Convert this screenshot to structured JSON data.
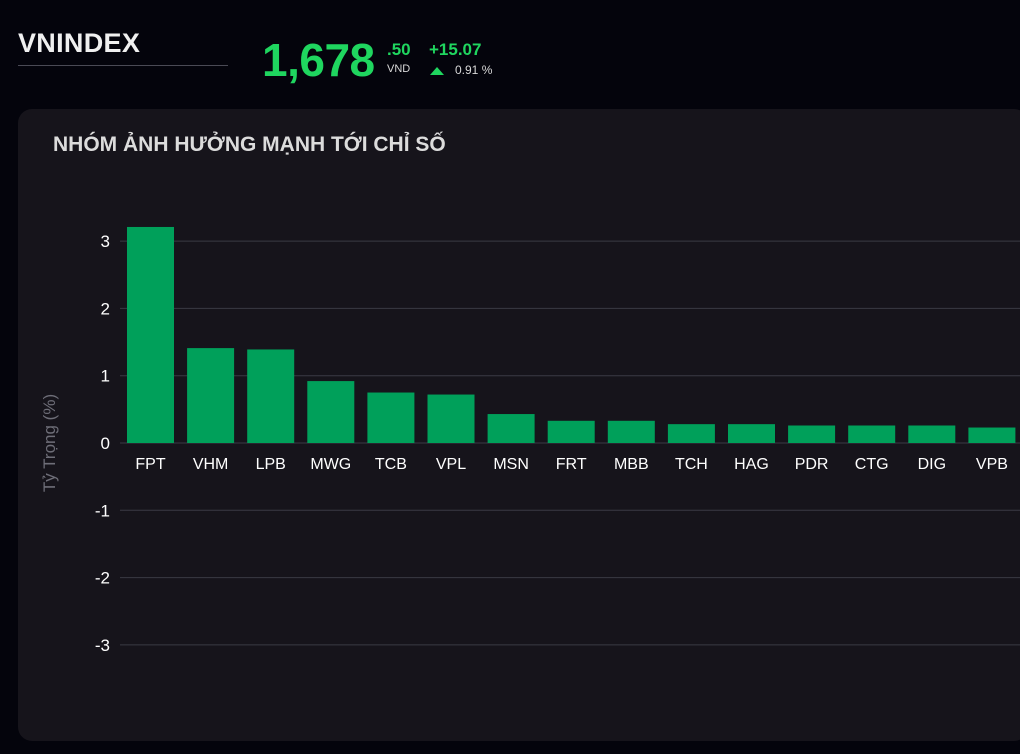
{
  "header": {
    "index_name": "VNINDEX",
    "price_main": "1,678",
    "price_decimal": ".50",
    "price_unit": "VND",
    "change_value": "+15.07",
    "change_percent": "0.91 %",
    "up_color": "#1fd65f"
  },
  "panel": {
    "title": "NHÓM ẢNH HƯỞNG MẠNH TỚI CHỈ SỐ"
  },
  "chart_data": {
    "type": "bar",
    "categories": [
      "FPT",
      "VHM",
      "LPB",
      "MWG",
      "TCB",
      "VPL",
      "MSN",
      "FRT",
      "MBB",
      "TCH",
      "HAG",
      "PDR",
      "CTG",
      "DIG",
      "VPB"
    ],
    "values": [
      3.21,
      1.41,
      1.39,
      0.92,
      0.75,
      0.72,
      0.43,
      0.33,
      0.33,
      0.28,
      0.28,
      0.26,
      0.26,
      0.26,
      0.23
    ],
    "ylabel": "Tỷ Trọng (%)",
    "ylim": [
      -3.5,
      3.2
    ],
    "yticks": [
      3,
      2,
      1,
      0,
      -1,
      -2,
      -3
    ],
    "ytick_labels": [
      "3",
      "2",
      "1",
      "0",
      "-1",
      "-2",
      "-3"
    ],
    "grid": true,
    "bar_color": "#00a05a",
    "grid_color": "#3a3a44"
  }
}
